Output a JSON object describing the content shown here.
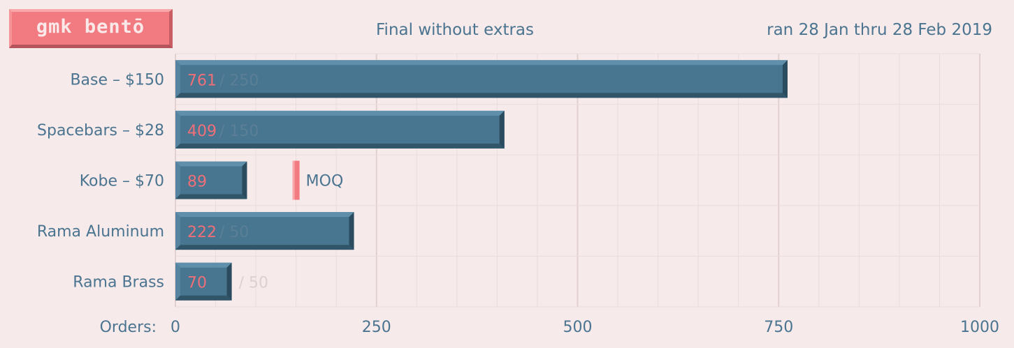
{
  "logo": "gmk bentō",
  "subtitle": "Final without extras",
  "dates": "ran 28 Jan thru 28 Feb 2019",
  "colors": {
    "background": "#f7eaea",
    "bar": "#48758f",
    "bar_light": "#5f8fab",
    "bar_dark": "#2b4b5e",
    "value_text": "#ef6f78",
    "label_text": "#4a7490",
    "moq_marker": "#f27b82"
  },
  "chart_data": {
    "type": "bar",
    "orientation": "horizontal",
    "categories": [
      "Base – $150",
      "Spacebars – $28",
      "Kobe – $70",
      "Rama Aluminum",
      "Rama Brass"
    ],
    "values": [
      761,
      409,
      89,
      222,
      70
    ],
    "moq": [
      250,
      150,
      150,
      50,
      50
    ],
    "moq_labels": [
      "/ 250",
      "/ 150",
      "",
      "/ 50",
      "/ 50"
    ],
    "moq_marker_label": "MOQ",
    "xlabel": "Orders:",
    "xlim": [
      0,
      1000
    ],
    "xticks": [
      0,
      250,
      500,
      750,
      1000
    ],
    "grid": true
  }
}
